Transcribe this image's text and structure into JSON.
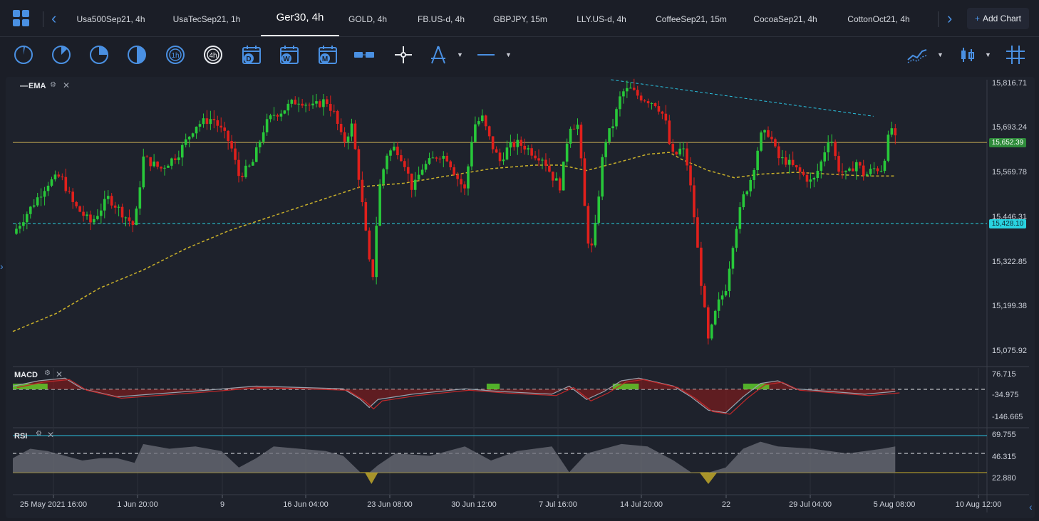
{
  "tabs": [
    {
      "label": "Usa500Sep21, 4h",
      "active": false
    },
    {
      "label": "UsaTecSep21, 1h",
      "active": false
    },
    {
      "label": "Ger30, 4h",
      "active": true
    },
    {
      "label": "GOLD, 4h",
      "active": false
    },
    {
      "label": "FB.US-d, 4h",
      "active": false
    },
    {
      "label": "GBPJPY, 15m",
      "active": false
    },
    {
      "label": "LLY.US-d, 4h",
      "active": false
    },
    {
      "label": "CoffeeSep21, 15m",
      "active": false
    },
    {
      "label": "CocoaSep21, 4h",
      "active": false
    },
    {
      "label": "CottonOct21, 4h",
      "active": false
    }
  ],
  "add_chart_label": "Add Chart",
  "toolbar": {
    "timeframe_tools": [
      "clock-1m-icon",
      "clock-15m-icon",
      "clock-30m-icon",
      "clock-45m-icon",
      "timeframe-1h-icon",
      "timeframe-4h-icon",
      "calendar-d-icon",
      "calendar-w-icon",
      "calendar-m-icon"
    ],
    "labels": {
      "h1": "1h",
      "h4": "4h",
      "d": "D",
      "w": "W",
      "m": "M"
    }
  },
  "panes": {
    "main_label": "EMA",
    "macd_label": "MACD",
    "rsi_label": "RSI",
    "close_glyph": "✕",
    "minus_glyph": "—"
  },
  "chart_data": {
    "type": "line",
    "symbol": "Ger30",
    "interval": "4h",
    "price_axis": [
      "15,816.71",
      "15,693.24",
      "15,569.78",
      "15,446.31",
      "15,322.85",
      "15,199.38",
      "15,075.92"
    ],
    "price_ticks": [
      15816.71,
      15693.24,
      15569.78,
      15446.31,
      15322.85,
      15199.38,
      15075.92
    ],
    "ylim": [
      15037,
      15826
    ],
    "current_price_badge": "15,652.39",
    "current_price": 15652.39,
    "support_badge": "15,428.10",
    "support_price": 15428.1,
    "resistance_trend_line": [
      [
        0.688,
        15826
      ],
      [
        0.99,
        15725
      ]
    ],
    "macd_axis": [
      "76.715",
      "-34.975",
      "-146.665"
    ],
    "rsi_axis": [
      "69.755",
      "46.315",
      "22.880"
    ],
    "x_tick_labels": [
      "25 May 2021 16:00",
      "1 Jun 20:00",
      "9",
      "16 Jun 04:00",
      "23 Jun 08:00",
      "30 Jun 12:00",
      "7 Jul 16:00",
      "14 Jul 20:00",
      "22",
      "29 Jul 04:00",
      "5 Aug 08:00",
      "10 Aug 12:00"
    ],
    "price_path": [
      [
        0.0,
        15400
      ],
      [
        0.02,
        15470
      ],
      [
        0.04,
        15540
      ],
      [
        0.055,
        15560
      ],
      [
        0.07,
        15480
      ],
      [
        0.09,
        15430
      ],
      [
        0.11,
        15500
      ],
      [
        0.125,
        15460
      ],
      [
        0.14,
        15420
      ],
      [
        0.15,
        15610
      ],
      [
        0.17,
        15580
      ],
      [
        0.19,
        15620
      ],
      [
        0.21,
        15700
      ],
      [
        0.23,
        15720
      ],
      [
        0.25,
        15650
      ],
      [
        0.26,
        15560
      ],
      [
        0.275,
        15590
      ],
      [
        0.29,
        15700
      ],
      [
        0.3,
        15730
      ],
      [
        0.31,
        15740
      ],
      [
        0.32,
        15760
      ],
      [
        0.33,
        15770
      ],
      [
        0.345,
        15750
      ],
      [
        0.36,
        15770
      ],
      [
        0.37,
        15730
      ],
      [
        0.38,
        15650
      ],
      [
        0.39,
        15700
      ],
      [
        0.4,
        15520
      ],
      [
        0.405,
        15420
      ],
      [
        0.41,
        15320
      ],
      [
        0.415,
        15280
      ],
      [
        0.42,
        15510
      ],
      [
        0.43,
        15620
      ],
      [
        0.44,
        15640
      ],
      [
        0.45,
        15600
      ],
      [
        0.46,
        15520
      ],
      [
        0.47,
        15580
      ],
      [
        0.48,
        15600
      ],
      [
        0.49,
        15620
      ],
      [
        0.5,
        15610
      ],
      [
        0.51,
        15560
      ],
      [
        0.52,
        15520
      ],
      [
        0.53,
        15700
      ],
      [
        0.54,
        15720
      ],
      [
        0.55,
        15650
      ],
      [
        0.56,
        15600
      ],
      [
        0.57,
        15640
      ],
      [
        0.58,
        15650
      ],
      [
        0.59,
        15640
      ],
      [
        0.6,
        15620
      ],
      [
        0.61,
        15610
      ],
      [
        0.62,
        15560
      ],
      [
        0.63,
        15530
      ],
      [
        0.64,
        15700
      ],
      [
        0.65,
        15700
      ],
      [
        0.655,
        15560
      ],
      [
        0.66,
        15400
      ],
      [
        0.665,
        15350
      ],
      [
        0.67,
        15420
      ],
      [
        0.68,
        15650
      ],
      [
        0.69,
        15700
      ],
      [
        0.7,
        15790
      ],
      [
        0.71,
        15800
      ],
      [
        0.72,
        15780
      ],
      [
        0.73,
        15770
      ],
      [
        0.74,
        15760
      ],
      [
        0.75,
        15720
      ],
      [
        0.755,
        15650
      ],
      [
        0.76,
        15610
      ],
      [
        0.77,
        15640
      ],
      [
        0.775,
        15600
      ],
      [
        0.78,
        15520
      ],
      [
        0.785,
        15420
      ],
      [
        0.79,
        15300
      ],
      [
        0.795,
        15200
      ],
      [
        0.8,
        15100
      ],
      [
        0.805,
        15150
      ],
      [
        0.81,
        15200
      ],
      [
        0.82,
        15250
      ],
      [
        0.83,
        15400
      ],
      [
        0.84,
        15500
      ],
      [
        0.85,
        15560
      ],
      [
        0.86,
        15670
      ],
      [
        0.87,
        15680
      ],
      [
        0.88,
        15610
      ],
      [
        0.89,
        15600
      ],
      [
        0.9,
        15580
      ],
      [
        0.91,
        15560
      ],
      [
        0.92,
        15540
      ],
      [
        0.93,
        15600
      ],
      [
        0.94,
        15680
      ],
      [
        0.945,
        15620
      ],
      [
        0.95,
        15580
      ],
      [
        0.96,
        15560
      ],
      [
        0.97,
        15600
      ],
      [
        0.98,
        15560
      ],
      [
        0.99,
        15580
      ],
      [
        1.0,
        15580
      ],
      [
        1.01,
        15700
      ],
      [
        1.015,
        15660
      ]
    ],
    "ema_path": [
      [
        0.0,
        15130
      ],
      [
        0.05,
        15180
      ],
      [
        0.1,
        15250
      ],
      [
        0.15,
        15300
      ],
      [
        0.2,
        15360
      ],
      [
        0.25,
        15410
      ],
      [
        0.3,
        15450
      ],
      [
        0.35,
        15490
      ],
      [
        0.4,
        15530
      ],
      [
        0.45,
        15540
      ],
      [
        0.5,
        15560
      ],
      [
        0.55,
        15580
      ],
      [
        0.6,
        15590
      ],
      [
        0.63,
        15590
      ],
      [
        0.66,
        15575
      ],
      [
        0.7,
        15600
      ],
      [
        0.73,
        15620
      ],
      [
        0.755,
        15625
      ],
      [
        0.77,
        15605
      ],
      [
        0.8,
        15575
      ],
      [
        0.83,
        15555
      ],
      [
        0.86,
        15565
      ],
      [
        0.9,
        15570
      ],
      [
        0.94,
        15565
      ],
      [
        0.98,
        15560
      ],
      [
        1.015,
        15560
      ]
    ],
    "macd_line": [
      [
        0.0,
        0.3
      ],
      [
        0.03,
        0.2
      ],
      [
        0.06,
        0.15
      ],
      [
        0.08,
        0.35
      ],
      [
        0.12,
        0.5
      ],
      [
        0.16,
        0.45
      ],
      [
        0.22,
        0.38
      ],
      [
        0.28,
        0.3
      ],
      [
        0.32,
        0.32
      ],
      [
        0.38,
        0.35
      ],
      [
        0.4,
        0.55
      ],
      [
        0.41,
        0.7
      ],
      [
        0.42,
        0.55
      ],
      [
        0.46,
        0.45
      ],
      [
        0.52,
        0.35
      ],
      [
        0.56,
        0.4
      ],
      [
        0.62,
        0.45
      ],
      [
        0.64,
        0.3
      ],
      [
        0.66,
        0.55
      ],
      [
        0.68,
        0.4
      ],
      [
        0.7,
        0.2
      ],
      [
        0.72,
        0.15
      ],
      [
        0.76,
        0.3
      ],
      [
        0.78,
        0.5
      ],
      [
        0.8,
        0.75
      ],
      [
        0.82,
        0.8
      ],
      [
        0.84,
        0.5
      ],
      [
        0.86,
        0.25
      ],
      [
        0.88,
        0.2
      ],
      [
        0.9,
        0.35
      ],
      [
        0.94,
        0.4
      ],
      [
        0.98,
        0.45
      ],
      [
        1.015,
        0.4
      ]
    ],
    "rsi_path": [
      [
        0.0,
        0.45
      ],
      [
        0.02,
        0.25
      ],
      [
        0.04,
        0.3
      ],
      [
        0.06,
        0.4
      ],
      [
        0.08,
        0.5
      ],
      [
        0.1,
        0.45
      ],
      [
        0.12,
        0.45
      ],
      [
        0.14,
        0.55
      ],
      [
        0.15,
        0.15
      ],
      [
        0.18,
        0.25
      ],
      [
        0.21,
        0.2
      ],
      [
        0.24,
        0.3
      ],
      [
        0.26,
        0.65
      ],
      [
        0.28,
        0.45
      ],
      [
        0.3,
        0.2
      ],
      [
        0.33,
        0.25
      ],
      [
        0.36,
        0.3
      ],
      [
        0.38,
        0.4
      ],
      [
        0.4,
        0.8
      ],
      [
        0.41,
        0.95
      ],
      [
        0.42,
        0.6
      ],
      [
        0.44,
        0.35
      ],
      [
        0.48,
        0.4
      ],
      [
        0.52,
        0.2
      ],
      [
        0.55,
        0.5
      ],
      [
        0.58,
        0.3
      ],
      [
        0.62,
        0.2
      ],
      [
        0.64,
        0.75
      ],
      [
        0.66,
        0.35
      ],
      [
        0.7,
        0.15
      ],
      [
        0.73,
        0.2
      ],
      [
        0.76,
        0.5
      ],
      [
        0.78,
        0.75
      ],
      [
        0.8,
        0.95
      ],
      [
        0.82,
        0.65
      ],
      [
        0.84,
        0.25
      ],
      [
        0.86,
        0.1
      ],
      [
        0.88,
        0.2
      ],
      [
        0.92,
        0.25
      ],
      [
        0.96,
        0.35
      ],
      [
        1.0,
        0.25
      ],
      [
        1.015,
        0.2
      ]
    ]
  }
}
